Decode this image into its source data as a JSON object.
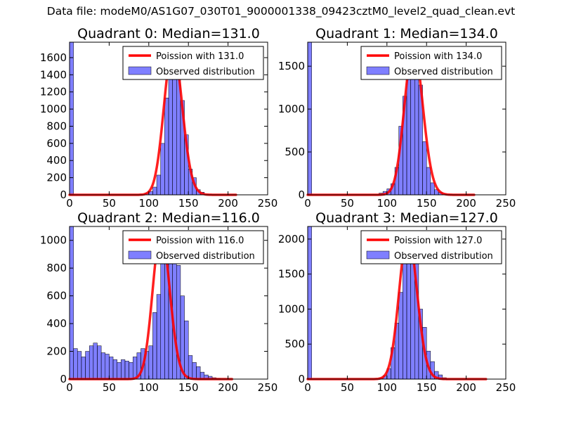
{
  "figure": {
    "suptitle": "Data file: modeM0/AS1G07_030T01_9000001338_09423cztM0_level2_quad_clean.evt"
  },
  "chart_data": [
    {
      "type": "bar",
      "title": "Quadrant 0: Median=131.0",
      "xlim": [
        0,
        250
      ],
      "ylim": [
        0,
        1780
      ],
      "xticks": [
        0,
        50,
        100,
        150,
        200,
        250
      ],
      "yticks": [
        0,
        200,
        400,
        600,
        800,
        1000,
        1200,
        1400,
        1600
      ],
      "legend": {
        "location": "top-right",
        "poisson_label": "Poission with 131.0",
        "observed_label": "Observed distribution"
      },
      "bin_width": 5,
      "hist_x": [
        0,
        95,
        100,
        105,
        110,
        115,
        120,
        125,
        130,
        135,
        140,
        145,
        150,
        155,
        160,
        165
      ],
      "hist_y": [
        1780,
        20,
        40,
        90,
        230,
        600,
        1130,
        1450,
        1660,
        1390,
        1100,
        700,
        300,
        200,
        60,
        30
      ],
      "poisson_mu": 131.0,
      "poisson_peak": 1720,
      "poisson_xmax": 210
    },
    {
      "type": "bar",
      "title": "Quadrant 1: Median=134.0",
      "xlim": [
        0,
        250
      ],
      "ylim": [
        0,
        1780
      ],
      "xticks": [
        0,
        50,
        100,
        150,
        200,
        250
      ],
      "yticks": [
        0,
        500,
        1000,
        1500
      ],
      "legend": {
        "location": "top-right",
        "poisson_label": "Poission with 134.0",
        "observed_label": "Observed distribution"
      },
      "bin_width": 5,
      "hist_x": [
        0,
        90,
        95,
        100,
        105,
        110,
        115,
        120,
        125,
        130,
        135,
        140,
        145,
        150,
        155,
        160,
        165,
        170
      ],
      "hist_y": [
        1780,
        20,
        40,
        70,
        130,
        320,
        800,
        1150,
        1560,
        1700,
        1460,
        1280,
        620,
        320,
        140,
        60,
        30,
        15
      ],
      "poisson_mu": 134.0,
      "poisson_peak": 1720,
      "poisson_xmax": 210
    },
    {
      "type": "bar",
      "title": "Quadrant 2: Median=116.0",
      "xlim": [
        0,
        250
      ],
      "ylim": [
        0,
        1100
      ],
      "xticks": [
        0,
        50,
        100,
        150,
        200,
        250
      ],
      "yticks": [
        0,
        200,
        400,
        600,
        800,
        1000
      ],
      "legend": {
        "location": "top-right",
        "poisson_label": "Poission with 116.0",
        "observed_label": "Observed distribution"
      },
      "bin_width": 5,
      "hist_x": [
        0,
        5,
        10,
        15,
        20,
        25,
        30,
        35,
        40,
        45,
        50,
        55,
        60,
        65,
        70,
        75,
        80,
        85,
        90,
        95,
        100,
        105,
        110,
        115,
        120,
        125,
        130,
        135,
        140,
        145,
        150,
        155,
        160,
        165,
        170,
        175,
        180,
        185
      ],
      "hist_y": [
        1100,
        220,
        200,
        160,
        200,
        240,
        260,
        240,
        190,
        180,
        160,
        140,
        120,
        140,
        130,
        120,
        160,
        190,
        220,
        200,
        240,
        480,
        610,
        850,
        920,
        980,
        1050,
        820,
        600,
        420,
        170,
        120,
        90,
        50,
        30,
        20,
        10,
        5
      ],
      "poisson_mu": 116.0,
      "poisson_peak": 1060,
      "poisson_xmax": 205
    },
    {
      "type": "bar",
      "title": "Quadrant 3: Median=127.0",
      "xlim": [
        0,
        250
      ],
      "ylim": [
        0,
        2180
      ],
      "xticks": [
        0,
        50,
        100,
        150,
        200,
        250
      ],
      "yticks": [
        0,
        500,
        1000,
        1500,
        2000
      ],
      "legend": {
        "location": "top-right",
        "poisson_label": "Poission with 127.0",
        "observed_label": "Observed distribution"
      },
      "bin_width": 5,
      "hist_x": [
        0,
        90,
        95,
        100,
        105,
        110,
        115,
        120,
        125,
        130,
        135,
        140,
        145,
        150,
        155,
        160,
        165,
        170
      ],
      "hist_y": [
        2180,
        20,
        50,
        150,
        450,
        800,
        1240,
        1780,
        2060,
        2100,
        1820,
        1000,
        740,
        400,
        250,
        110,
        60,
        20
      ],
      "poisson_mu": 127.0,
      "poisson_peak": 2070,
      "poisson_xmax": 225
    }
  ]
}
